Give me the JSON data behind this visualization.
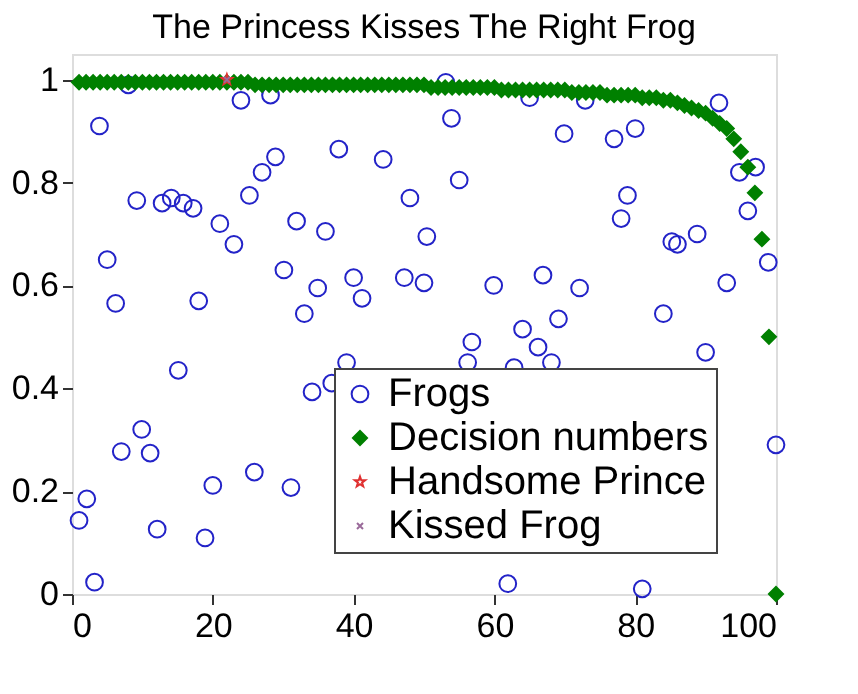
{
  "chart_data": {
    "type": "scatter",
    "title": "The Princess Kisses The Right Frog",
    "xlim": [
      0,
      100
    ],
    "ylim": [
      0,
      1.05
    ],
    "xticks": [
      0,
      20,
      40,
      60,
      80,
      100
    ],
    "yticks": [
      0,
      0.2,
      0.4,
      0.6,
      0.8,
      1
    ],
    "grid": false,
    "legend": "bottom right",
    "series": [
      {
        "name": "Frogs",
        "color": "#2323c8",
        "marker": "circle",
        "x": [
          8,
          3.9,
          24,
          28.2,
          9.2,
          12.8,
          14.1,
          15.8,
          17.2,
          5,
          6.2,
          18,
          21,
          23,
          25.2,
          27,
          28.9,
          30.1,
          31.9,
          33,
          34.9,
          36,
          37.9,
          40,
          41.2,
          39,
          44.2,
          47.2,
          48,
          50,
          50.4,
          53.1,
          53.9,
          55,
          65,
          72.9,
          69.9,
          77,
          80,
          91.9,
          78.9,
          78,
          85.2,
          86,
          88.8,
          94.8,
          97.1,
          96,
          98.9,
          93,
          59.9,
          66.9,
          72.1,
          84,
          64,
          69.1,
          56.8,
          66.2,
          90,
          68.1,
          56.2,
          62.8,
          100,
          61.9,
          81,
          15.1,
          1,
          2.1,
          3.2,
          7,
          9.9,
          11.1,
          12.1,
          18.9,
          20,
          25.9,
          31.1,
          34.1,
          36.9
        ],
        "values": [
          0.99,
          0.91,
          0.96,
          0.97,
          0.765,
          0.76,
          0.77,
          0.76,
          0.75,
          0.65,
          0.565,
          0.57,
          0.72,
          0.68,
          0.775,
          0.82,
          0.85,
          0.63,
          0.725,
          0.545,
          0.595,
          0.705,
          0.865,
          0.615,
          0.575,
          0.45,
          0.845,
          0.615,
          0.77,
          0.605,
          0.695,
          0.995,
          0.925,
          0.805,
          0.965,
          0.96,
          0.895,
          0.885,
          0.905,
          0.955,
          0.775,
          0.73,
          0.685,
          0.68,
          0.7,
          0.82,
          0.83,
          0.745,
          0.645,
          0.605,
          0.6,
          0.62,
          0.595,
          0.545,
          0.515,
          0.535,
          0.49,
          0.48,
          0.47,
          0.45,
          0.45,
          0.44,
          0.29,
          0.02,
          0.01,
          0.435,
          0.143,
          0.185,
          0.023,
          0.277,
          0.32,
          0.274,
          0.126,
          0.109,
          0.211,
          0.237,
          0.207,
          0.393,
          0.41
        ]
      },
      {
        "name": "Decision numbers",
        "color": "#008000",
        "marker": "diamond",
        "x": [
          1,
          2,
          3,
          4,
          5,
          6,
          7,
          8,
          9,
          10,
          11,
          12,
          13,
          14,
          15,
          16,
          17,
          18,
          19,
          20,
          21,
          22,
          23,
          24,
          25,
          26,
          27,
          28,
          29,
          30,
          31,
          32,
          33,
          34,
          35,
          36,
          37,
          38,
          39,
          40,
          41,
          42,
          43,
          44,
          45,
          46,
          47,
          48,
          49,
          50,
          51,
          52,
          53,
          54,
          55,
          56,
          57,
          58,
          59,
          60,
          61,
          62,
          63,
          64,
          65,
          66,
          67,
          68,
          69,
          70,
          71,
          72,
          73,
          74,
          75,
          76,
          77,
          78,
          79,
          80,
          81,
          82,
          83,
          84,
          85,
          86,
          87,
          88,
          89,
          90,
          91,
          92,
          93,
          94,
          95,
          96,
          97,
          98,
          99,
          100
        ],
        "values": [
          0.995,
          0.995,
          0.995,
          0.995,
          0.995,
          0.995,
          0.995,
          0.995,
          0.995,
          0.995,
          0.995,
          0.995,
          0.995,
          0.995,
          0.995,
          0.995,
          0.995,
          0.995,
          0.995,
          0.995,
          0.995,
          0.995,
          0.995,
          0.995,
          0.995,
          0.99,
          0.99,
          0.99,
          0.99,
          0.99,
          0.99,
          0.99,
          0.99,
          0.99,
          0.99,
          0.99,
          0.99,
          0.99,
          0.99,
          0.99,
          0.99,
          0.99,
          0.99,
          0.99,
          0.99,
          0.99,
          0.99,
          0.99,
          0.99,
          0.99,
          0.985,
          0.985,
          0.985,
          0.985,
          0.985,
          0.985,
          0.985,
          0.985,
          0.985,
          0.985,
          0.98,
          0.98,
          0.98,
          0.98,
          0.98,
          0.98,
          0.98,
          0.98,
          0.98,
          0.98,
          0.975,
          0.975,
          0.975,
          0.975,
          0.975,
          0.97,
          0.97,
          0.97,
          0.97,
          0.97,
          0.965,
          0.965,
          0.965,
          0.96,
          0.96,
          0.955,
          0.95,
          0.945,
          0.94,
          0.935,
          0.925,
          0.915,
          0.905,
          0.885,
          0.86,
          0.83,
          0.78,
          0.69,
          0.5,
          0
        ]
      },
      {
        "name": "Handsome Prince",
        "color": "#e03030",
        "marker": "star",
        "x": [
          22
        ],
        "values": [
          1.0
        ]
      },
      {
        "name": "Kissed Frog",
        "color": "#9a6a9a",
        "marker": "cross",
        "x": [
          22
        ],
        "values": [
          1.0
        ]
      }
    ]
  }
}
